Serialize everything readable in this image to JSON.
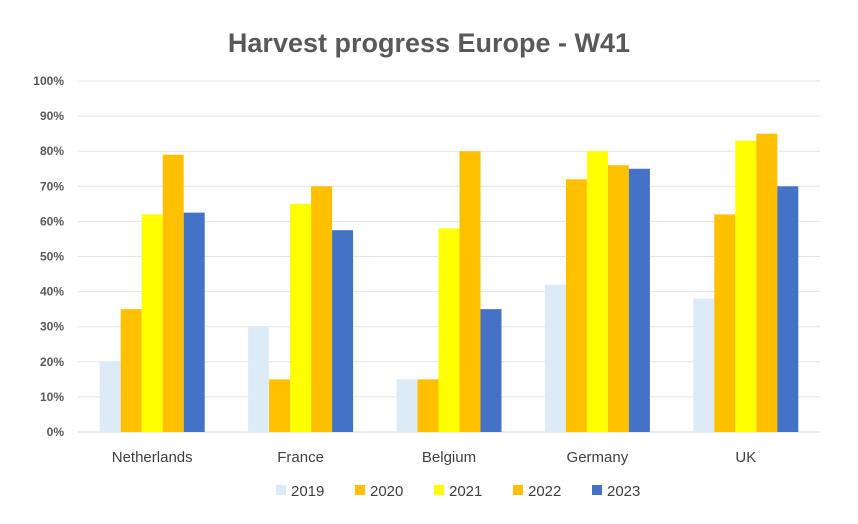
{
  "chart_data": {
    "type": "bar",
    "title": "Harvest progress Europe - W41",
    "xlabel": "",
    "ylabel": "",
    "ylim": [
      0,
      100
    ],
    "yticks": [
      "0%",
      "10%",
      "20%",
      "30%",
      "40%",
      "50%",
      "60%",
      "70%",
      "80%",
      "90%",
      "100%"
    ],
    "grid": true,
    "legend_position": "bottom",
    "categories": [
      "Netherlands",
      "France",
      "Belgium",
      "Germany",
      "UK"
    ],
    "series": [
      {
        "name": "2019",
        "color": "#DDEBF7",
        "values": [
          20,
          30,
          15,
          42,
          38
        ]
      },
      {
        "name": "2020",
        "color": "#FFC000",
        "values": [
          35,
          15,
          15,
          72,
          62
        ]
      },
      {
        "name": "2021",
        "color": "#FFFF00",
        "values": [
          62,
          65,
          58,
          80,
          83
        ]
      },
      {
        "name": "2022",
        "color": "#FFC000",
        "values": [
          79,
          70,
          80,
          76,
          85
        ]
      },
      {
        "name": "2023",
        "color": "#4472C4",
        "values": [
          62.5,
          57.5,
          35,
          75,
          70
        ]
      }
    ]
  }
}
